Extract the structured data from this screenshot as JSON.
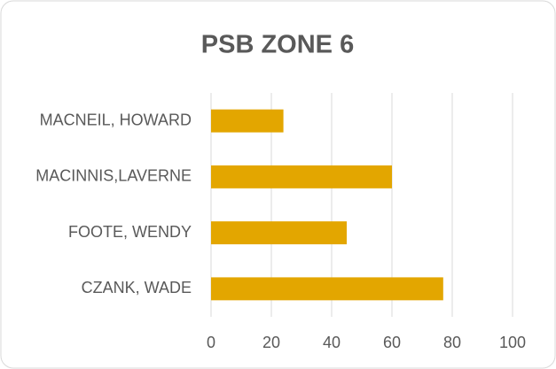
{
  "chart_data": {
    "type": "bar",
    "horizontal": true,
    "title": "PSB ZONE 6",
    "categories": [
      "MACNEIL, HOWARD",
      "MACINNIS,LAVERNE",
      "FOOTE, WENDY",
      "CZANK, WADE"
    ],
    "values": [
      24,
      60,
      45,
      77
    ],
    "color": "#e3a600",
    "xlim": [
      0,
      100
    ],
    "xticks": [
      0,
      20,
      40,
      60,
      80,
      100
    ],
    "grid": true
  }
}
